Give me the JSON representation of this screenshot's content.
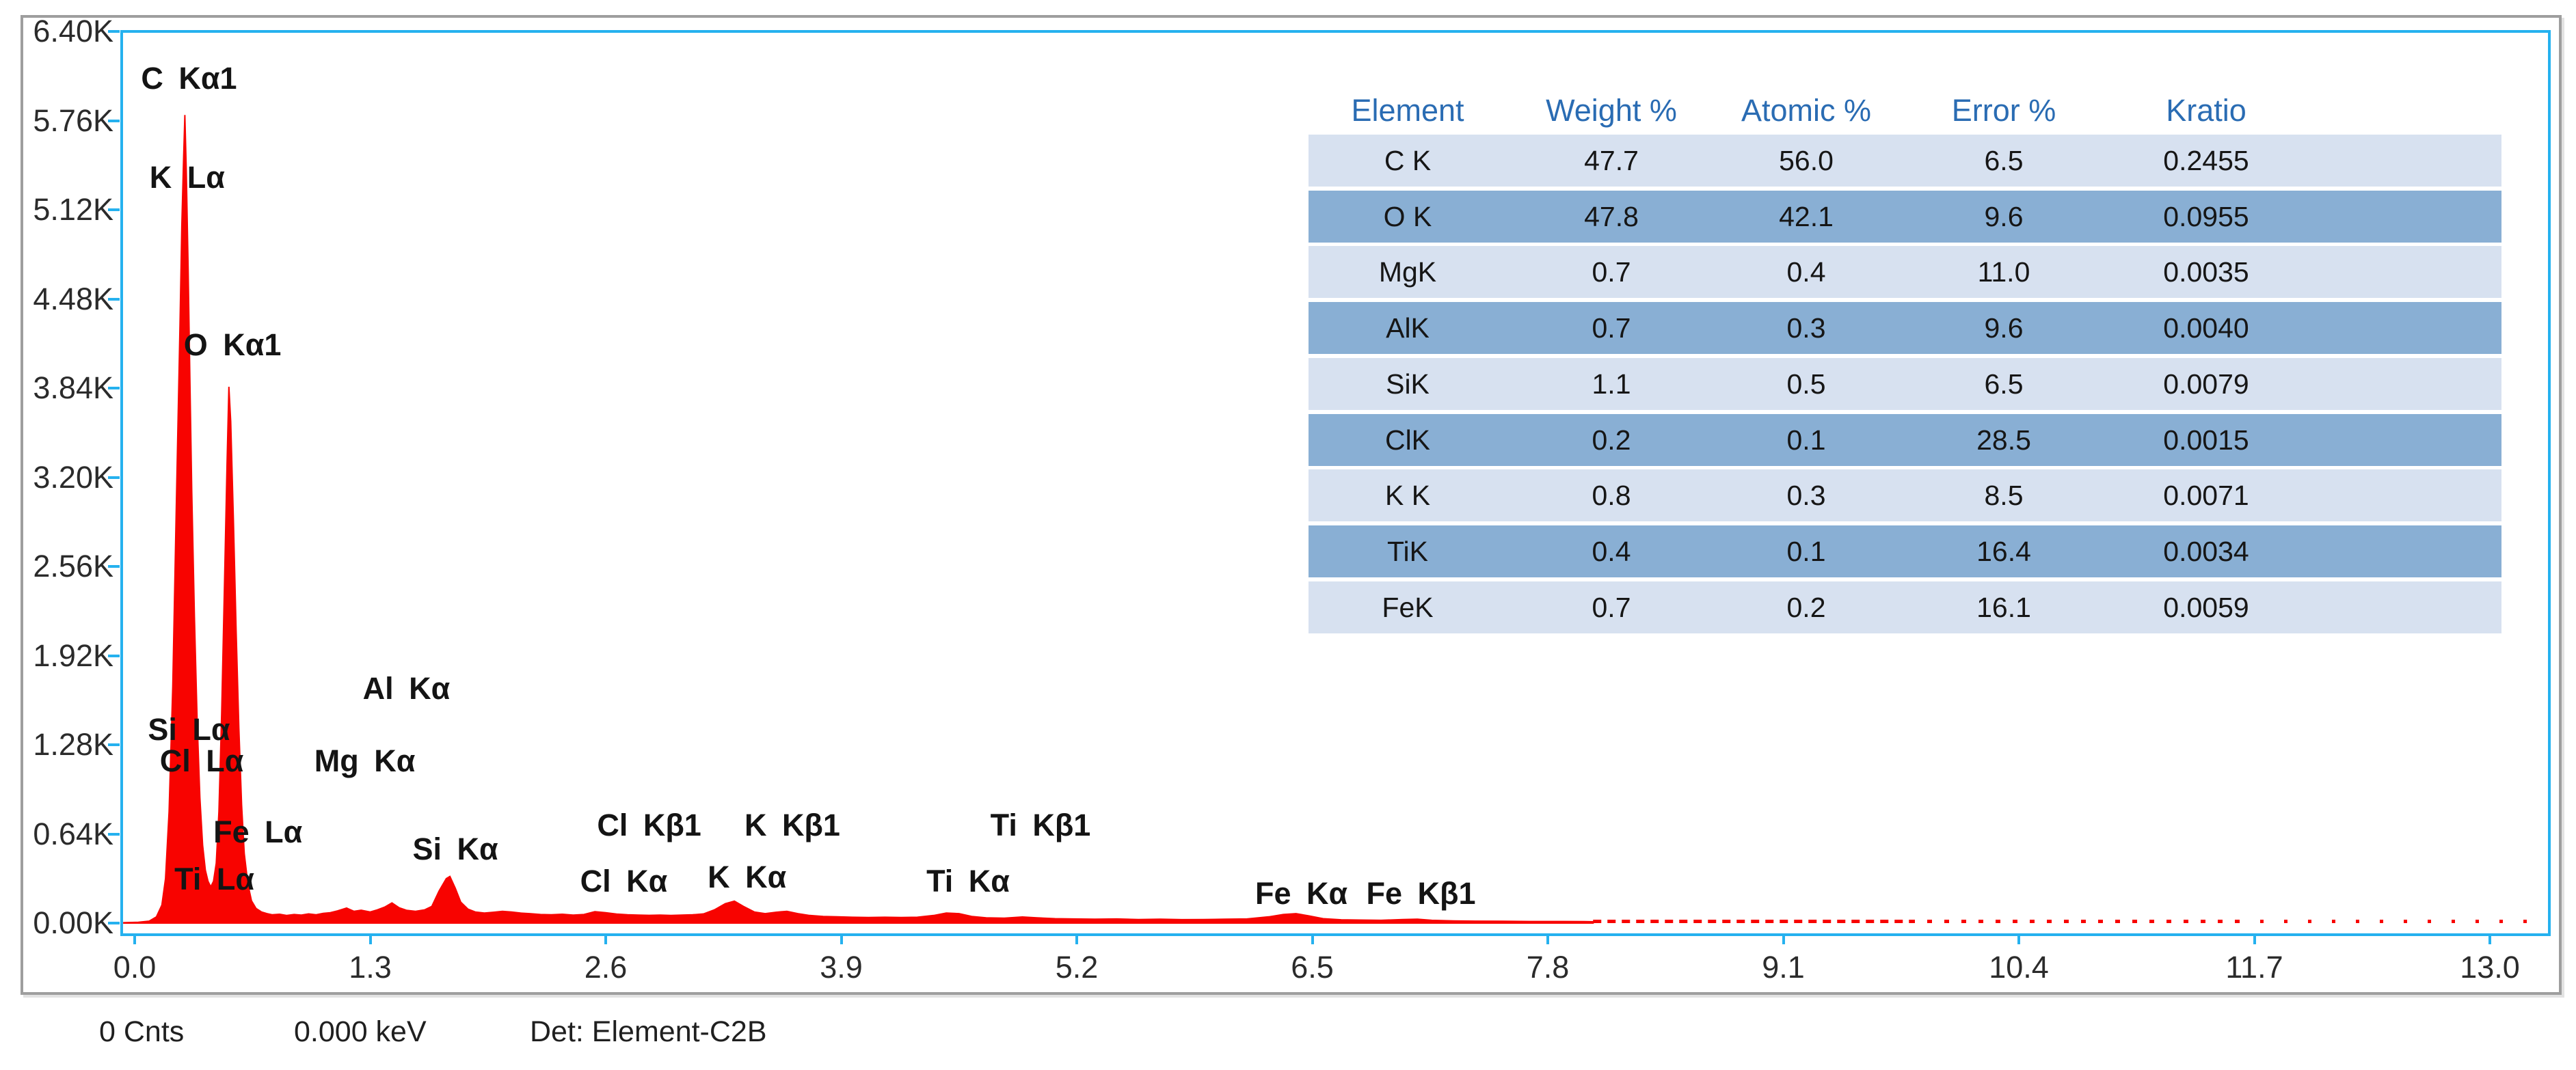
{
  "colors": {
    "plot_border": "#25b1ef",
    "frame_border": "#9e9e9e",
    "spectrum_red": "#f80300",
    "table_header_text": "#2a6cb3",
    "table_row_light": "#d7e1f0",
    "table_row_dark": "#89afd4",
    "axis_text": "#2b2b2b"
  },
  "chart_data": {
    "type": "area",
    "description": "EDS X-ray energy spectrum, red filled trace, counts vs energy (keV)",
    "x_ticks": [
      "0.0",
      "1.3",
      "2.6",
      "3.9",
      "5.2",
      "6.5",
      "7.8",
      "9.1",
      "10.4",
      "11.7",
      "13.0"
    ],
    "x_tick_values": [
      0,
      1.3,
      2.6,
      3.9,
      5.2,
      6.5,
      7.8,
      9.1,
      10.4,
      11.7,
      13.0
    ],
    "y_ticks": [
      "0.00K",
      "0.64K",
      "1.28K",
      "1.92K",
      "2.56K",
      "3.20K",
      "3.84K",
      "4.48K",
      "5.12K",
      "5.76K",
      "6.40K"
    ],
    "y_tick_values": [
      0,
      640,
      1280,
      1920,
      2560,
      3200,
      3840,
      4480,
      5120,
      5760,
      6400
    ],
    "xlim": [
      0,
      13.0
    ],
    "ylim": [
      0,
      6400
    ],
    "grid": false,
    "spectrum": [
      [
        -0.06,
        3
      ],
      [
        0.02,
        6
      ],
      [
        0.08,
        14
      ],
      [
        0.12,
        45
      ],
      [
        0.15,
        130
      ],
      [
        0.17,
        320
      ],
      [
        0.19,
        800
      ],
      [
        0.21,
        1700
      ],
      [
        0.23,
        3000
      ],
      [
        0.25,
        4300
      ],
      [
        0.26,
        5000
      ],
      [
        0.27,
        5500
      ],
      [
        0.277,
        5800
      ],
      [
        0.285,
        5400
      ],
      [
        0.295,
        4700
      ],
      [
        0.305,
        3900
      ],
      [
        0.315,
        3100
      ],
      [
        0.33,
        2200
      ],
      [
        0.345,
        1450
      ],
      [
        0.36,
        900
      ],
      [
        0.375,
        560
      ],
      [
        0.39,
        380
      ],
      [
        0.405,
        300
      ],
      [
        0.42,
        260
      ],
      [
        0.435,
        300
      ],
      [
        0.45,
        430
      ],
      [
        0.465,
        800
      ],
      [
        0.48,
        1500
      ],
      [
        0.495,
        2400
      ],
      [
        0.51,
        3300
      ],
      [
        0.52,
        3850
      ],
      [
        0.53,
        3600
      ],
      [
        0.545,
        2900
      ],
      [
        0.56,
        2100
      ],
      [
        0.575,
        1400
      ],
      [
        0.59,
        850
      ],
      [
        0.605,
        500
      ],
      [
        0.625,
        280
      ],
      [
        0.645,
        160
      ],
      [
        0.67,
        105
      ],
      [
        0.7,
        80
      ],
      [
        0.73,
        68
      ],
      [
        0.76,
        60
      ],
      [
        0.8,
        64
      ],
      [
        0.84,
        55
      ],
      [
        0.88,
        62
      ],
      [
        0.92,
        58
      ],
      [
        0.96,
        66
      ],
      [
        1.0,
        60
      ],
      [
        1.04,
        70
      ],
      [
        1.08,
        75
      ],
      [
        1.12,
        88
      ],
      [
        1.17,
        108
      ],
      [
        1.21,
        85
      ],
      [
        1.25,
        92
      ],
      [
        1.3,
        80
      ],
      [
        1.34,
        95
      ],
      [
        1.38,
        115
      ],
      [
        1.42,
        145
      ],
      [
        1.46,
        110
      ],
      [
        1.5,
        92
      ],
      [
        1.55,
        85
      ],
      [
        1.6,
        95
      ],
      [
        1.64,
        120
      ],
      [
        1.68,
        230
      ],
      [
        1.72,
        320
      ],
      [
        1.74,
        335
      ],
      [
        1.77,
        250
      ],
      [
        1.8,
        150
      ],
      [
        1.84,
        100
      ],
      [
        1.88,
        80
      ],
      [
        1.93,
        72
      ],
      [
        1.98,
        78
      ],
      [
        2.03,
        85
      ],
      [
        2.08,
        80
      ],
      [
        2.13,
        72
      ],
      [
        2.18,
        68
      ],
      [
        2.24,
        62
      ],
      [
        2.3,
        60
      ],
      [
        2.36,
        64
      ],
      [
        2.42,
        58
      ],
      [
        2.48,
        62
      ],
      [
        2.54,
        82
      ],
      [
        2.6,
        75
      ],
      [
        2.66,
        65
      ],
      [
        2.72,
        60
      ],
      [
        2.78,
        58
      ],
      [
        2.84,
        56
      ],
      [
        2.9,
        58
      ],
      [
        2.96,
        55
      ],
      [
        3.02,
        58
      ],
      [
        3.08,
        60
      ],
      [
        3.14,
        66
      ],
      [
        3.2,
        95
      ],
      [
        3.26,
        140
      ],
      [
        3.31,
        158
      ],
      [
        3.36,
        120
      ],
      [
        3.42,
        80
      ],
      [
        3.48,
        68
      ],
      [
        3.54,
        78
      ],
      [
        3.6,
        85
      ],
      [
        3.66,
        68
      ],
      [
        3.72,
        56
      ],
      [
        3.8,
        48
      ],
      [
        3.88,
        45
      ],
      [
        3.96,
        42
      ],
      [
        4.05,
        40
      ],
      [
        4.14,
        42
      ],
      [
        4.23,
        40
      ],
      [
        4.32,
        42
      ],
      [
        4.41,
        55
      ],
      [
        4.48,
        72
      ],
      [
        4.55,
        68
      ],
      [
        4.62,
        48
      ],
      [
        4.7,
        38
      ],
      [
        4.8,
        36
      ],
      [
        4.9,
        44
      ],
      [
        4.98,
        38
      ],
      [
        5.08,
        32
      ],
      [
        5.18,
        30
      ],
      [
        5.3,
        28
      ],
      [
        5.42,
        30
      ],
      [
        5.54,
        26
      ],
      [
        5.66,
        28
      ],
      [
        5.78,
        25
      ],
      [
        5.9,
        26
      ],
      [
        6.02,
        28
      ],
      [
        6.14,
        30
      ],
      [
        6.26,
        45
      ],
      [
        6.34,
        62
      ],
      [
        6.41,
        68
      ],
      [
        6.48,
        52
      ],
      [
        6.56,
        32
      ],
      [
        6.66,
        24
      ],
      [
        6.76,
        22
      ],
      [
        6.88,
        20
      ],
      [
        7.0,
        26
      ],
      [
        7.08,
        28
      ],
      [
        7.16,
        20
      ],
      [
        7.28,
        16
      ],
      [
        7.4,
        14
      ],
      [
        7.55,
        13
      ],
      [
        7.7,
        12
      ],
      [
        7.85,
        12
      ],
      [
        8.0,
        11
      ],
      [
        8.05,
        10
      ]
    ],
    "sparse_tail": {
      "y_counts": 12,
      "thickness": 5,
      "segments": [
        {
          "from": 8.05,
          "to": 9.8,
          "dash": "12 9"
        },
        {
          "from": 9.8,
          "to": 11.6,
          "dash": "7 18"
        },
        {
          "from": 11.6,
          "to": 13.28,
          "dash": "5 30"
        }
      ]
    },
    "peak_labels": [
      {
        "text": "C Kα1",
        "kev": 0.3,
        "counts": 6060
      },
      {
        "text": "K Lα",
        "kev": 0.29,
        "counts": 5350
      },
      {
        "text": "O Kα1",
        "kev": 0.54,
        "counts": 4150
      },
      {
        "text": "Si Lα",
        "kev": 0.3,
        "counts": 1390
      },
      {
        "text": "Cl Lα",
        "kev": 0.37,
        "counts": 1160
      },
      {
        "text": "Fe Lα",
        "kev": 0.68,
        "counts": 650
      },
      {
        "text": "Ti Lα",
        "kev": 0.44,
        "counts": 315
      },
      {
        "text": "Al Kα",
        "kev": 1.5,
        "counts": 1680
      },
      {
        "text": "Mg Kα",
        "kev": 1.27,
        "counts": 1160
      },
      {
        "text": "Si Kα",
        "kev": 1.77,
        "counts": 530
      },
      {
        "text": "Cl Kβ1",
        "kev": 2.84,
        "counts": 700
      },
      {
        "text": "K Kβ1",
        "kev": 3.63,
        "counts": 700
      },
      {
        "text": "Cl Kα",
        "kev": 2.7,
        "counts": 300
      },
      {
        "text": "K Kα",
        "kev": 3.38,
        "counts": 330
      },
      {
        "text": "Ti Kβ1",
        "kev": 5.0,
        "counts": 700
      },
      {
        "text": "Ti Kα",
        "kev": 4.6,
        "counts": 300
      },
      {
        "text": "Fe Kα",
        "kev": 6.44,
        "counts": 210
      },
      {
        "text": "Fe Kβ1",
        "kev": 7.1,
        "counts": 210
      }
    ]
  },
  "table": {
    "headers": [
      "Element",
      "Weight %",
      "Atomic %",
      "Error %",
      "Kratio"
    ],
    "rows": [
      {
        "element": "C K",
        "weight": "47.7",
        "atomic": "56.0",
        "error": "6.5",
        "kratio": "0.2455"
      },
      {
        "element": "O K",
        "weight": "47.8",
        "atomic": "42.1",
        "error": "9.6",
        "kratio": "0.0955"
      },
      {
        "element": "MgK",
        "weight": "0.7",
        "atomic": "0.4",
        "error": "11.0",
        "kratio": "0.0035"
      },
      {
        "element": "AlK",
        "weight": "0.7",
        "atomic": "0.3",
        "error": "9.6",
        "kratio": "0.0040"
      },
      {
        "element": "SiK",
        "weight": "1.1",
        "atomic": "0.5",
        "error": "6.5",
        "kratio": "0.0079"
      },
      {
        "element": "ClK",
        "weight": "0.2",
        "atomic": "0.1",
        "error": "28.5",
        "kratio": "0.0015"
      },
      {
        "element": "K K",
        "weight": "0.8",
        "atomic": "0.3",
        "error": "8.5",
        "kratio": "0.0071"
      },
      {
        "element": "TiK",
        "weight": "0.4",
        "atomic": "0.1",
        "error": "16.4",
        "kratio": "0.0034"
      },
      {
        "element": "FeK",
        "weight": "0.7",
        "atomic": "0.2",
        "error": "16.1",
        "kratio": "0.0059"
      }
    ]
  },
  "status_bar": {
    "counts": "0 Cnts",
    "energy": "0.000 keV",
    "detector": "Det: Element-C2B"
  }
}
